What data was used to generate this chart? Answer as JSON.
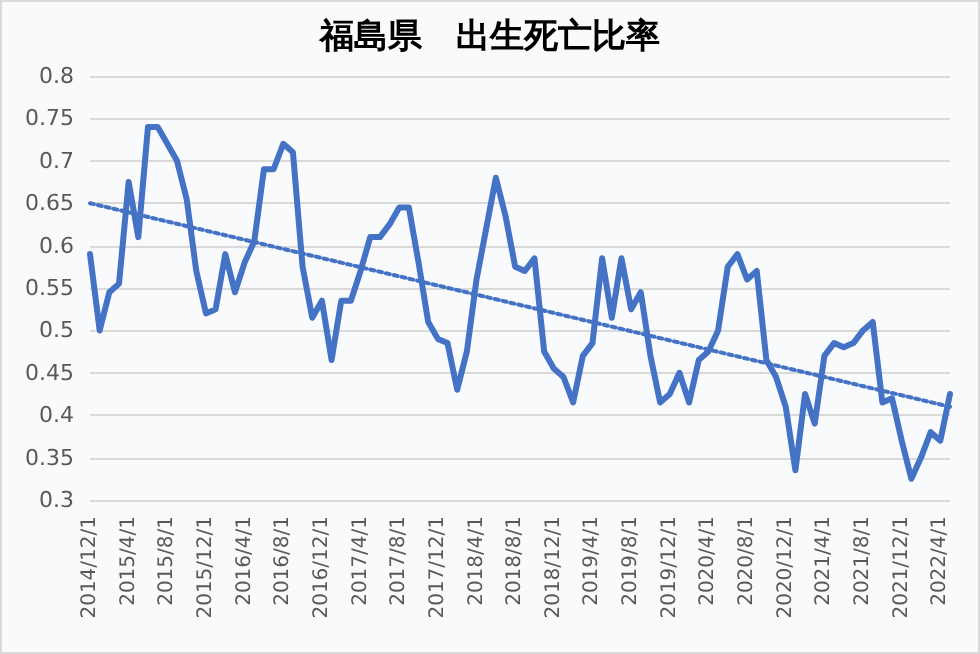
{
  "chart_data": {
    "type": "line",
    "title": "福島県　出生死亡比率",
    "categories": [
      "2014/12/1",
      null,
      null,
      null,
      "2015/4/1",
      null,
      null,
      null,
      "2015/8/1",
      null,
      null,
      null,
      "2015/12/1",
      null,
      null,
      null,
      "2016/4/1",
      null,
      null,
      null,
      "2016/8/1",
      null,
      null,
      null,
      "2016/12/1",
      null,
      null,
      null,
      "2017/4/1",
      null,
      null,
      null,
      "2017/8/1",
      null,
      null,
      null,
      "2017/12/1",
      null,
      null,
      null,
      "2018/4/1",
      null,
      null,
      null,
      "2018/8/1",
      null,
      null,
      null,
      "2018/12/1",
      null,
      null,
      null,
      "2019/4/1",
      null,
      null,
      null,
      "2019/8/1",
      null,
      null,
      null,
      "2019/12/1",
      null,
      null,
      null,
      "2020/4/1",
      null,
      null,
      null,
      "2020/8/1",
      null,
      null,
      null,
      "2020/12/1",
      null,
      null,
      null,
      "2021/4/1",
      null,
      null,
      null,
      "2021/8/1",
      null,
      null,
      null,
      "2021/12/1",
      null,
      null,
      null,
      "2022/4/1",
      null
    ],
    "series": [
      {
        "color": "#4472c4",
        "values": [
          0.59,
          0.5,
          0.545,
          0.555,
          0.675,
          0.61,
          0.74,
          0.74,
          0.72,
          0.7,
          0.655,
          0.57,
          0.52,
          0.525,
          0.59,
          0.545,
          0.58,
          0.605,
          0.69,
          0.69,
          0.72,
          0.71,
          0.575,
          0.515,
          0.535,
          0.465,
          0.535,
          0.535,
          0.57,
          0.61,
          0.61,
          0.625,
          0.645,
          0.645,
          0.58,
          0.51,
          0.49,
          0.485,
          0.43,
          0.475,
          0.56,
          0.62,
          0.68,
          0.635,
          0.575,
          0.57,
          0.585,
          0.475,
          0.455,
          0.445,
          0.415,
          0.47,
          0.485,
          0.585,
          0.515,
          0.585,
          0.525,
          0.545,
          0.47,
          0.415,
          0.425,
          0.45,
          0.415,
          0.465,
          0.475,
          0.5,
          0.575,
          0.59,
          0.56,
          0.57,
          0.465,
          0.445,
          0.41,
          0.335,
          0.425,
          0.39,
          0.47,
          0.485,
          0.48,
          0.485,
          0.5,
          0.51,
          0.415,
          0.42,
          0.37,
          0.325,
          0.35,
          0.38,
          0.37,
          0.425
        ]
      },
      {
        "color": "#4472c4",
        "line_style": "dotted",
        "values": [
          0.65,
          null,
          null,
          null,
          null,
          null,
          null,
          null,
          null,
          null,
          null,
          null,
          null,
          null,
          null,
          null,
          null,
          null,
          null,
          null,
          null,
          null,
          null,
          null,
          null,
          null,
          null,
          null,
          null,
          null,
          null,
          null,
          null,
          null,
          null,
          null,
          null,
          null,
          null,
          null,
          null,
          null,
          null,
          null,
          null,
          null,
          null,
          null,
          null,
          null,
          null,
          null,
          null,
          null,
          null,
          null,
          null,
          null,
          null,
          null,
          null,
          null,
          null,
          null,
          null,
          null,
          null,
          null,
          null,
          null,
          null,
          null,
          null,
          null,
          null,
          null,
          null,
          null,
          null,
          null,
          null,
          null,
          null,
          null,
          null,
          null,
          null,
          null,
          null,
          0.41
        ]
      }
    ],
    "ylim": [
      0.3,
      0.8
    ],
    "yticks": [
      0.3,
      0.35,
      0.4,
      0.45,
      0.5,
      0.55,
      0.6,
      0.65,
      0.7,
      0.75,
      0.8
    ],
    "grid": "y",
    "marker": "none",
    "line_style": "solid"
  }
}
